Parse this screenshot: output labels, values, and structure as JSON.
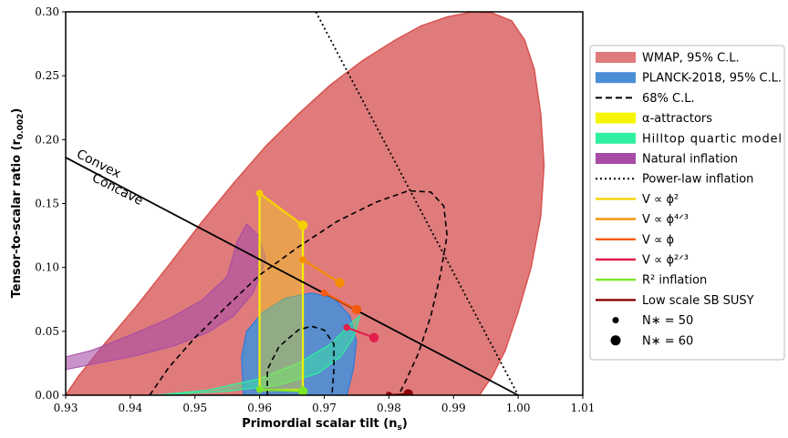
{
  "chart_data": {
    "type": "scatter",
    "title": "",
    "xlabel": "Primordial scalar tilt (n",
    "xlabel_sub": "s",
    "ylabel": "Tensor-to-scalar ratio (r",
    "ylabel_sub": "0.002",
    "xlim": [
      0.93,
      1.01
    ],
    "ylim": [
      0.0,
      0.3
    ],
    "xticks": [
      "0.93",
      "0.94",
      "0.95",
      "0.96",
      "0.97",
      "0.98",
      "0.99",
      "1.00",
      "1.01"
    ],
    "yticks": [
      "0.00",
      "0.05",
      "0.10",
      "0.15",
      "0.20",
      "0.25",
      "0.30"
    ],
    "annotations": [
      "Convex",
      "Concave"
    ],
    "colors": {
      "wmap": "#e07b7b",
      "wmap_edge": "#d9534f",
      "planck": "#4a8fd6",
      "planck_edge": "#2e7bd6",
      "alpha": "#f5e400",
      "hilltop": "#2ff0a0",
      "natural": "#a64ca6",
      "phi2": "#f5d000",
      "phi43": "#f58f00",
      "phi1": "#f55a10",
      "phi23": "#e0204a",
      "r2": "#7ce628",
      "susy": "#8b0000"
    },
    "regions": {
      "wmap_95": [
        [
          0.93,
          0.0
        ],
        [
          0.932,
          0.015
        ],
        [
          0.936,
          0.04
        ],
        [
          0.941,
          0.07
        ],
        [
          0.946,
          0.102
        ],
        [
          0.951,
          0.135
        ],
        [
          0.956,
          0.166
        ],
        [
          0.961,
          0.195
        ],
        [
          0.966,
          0.22
        ],
        [
          0.971,
          0.243
        ],
        [
          0.976,
          0.262
        ],
        [
          0.981,
          0.278
        ],
        [
          0.985,
          0.289
        ],
        [
          0.989,
          0.296
        ],
        [
          0.993,
          0.3
        ],
        [
          0.996,
          0.299
        ],
        [
          0.999,
          0.293
        ],
        [
          1.001,
          0.278
        ],
        [
          1.0025,
          0.255
        ],
        [
          1.0035,
          0.22
        ],
        [
          1.004,
          0.18
        ],
        [
          1.0035,
          0.14
        ],
        [
          1.002,
          0.1
        ],
        [
          1.0,
          0.065
        ],
        [
          0.998,
          0.035
        ],
        [
          0.996,
          0.015
        ],
        [
          0.994,
          0.0
        ]
      ],
      "planck_95": [
        [
          0.9575,
          0.0
        ],
        [
          0.9572,
          0.03
        ],
        [
          0.958,
          0.05
        ],
        [
          0.9605,
          0.065
        ],
        [
          0.964,
          0.076
        ],
        [
          0.968,
          0.08
        ],
        [
          0.9715,
          0.076
        ],
        [
          0.974,
          0.062
        ],
        [
          0.975,
          0.042
        ],
        [
          0.9745,
          0.02
        ],
        [
          0.9735,
          0.0
        ]
      ],
      "cl68_wmap": [
        [
          0.943,
          0.0
        ],
        [
          0.946,
          0.022
        ],
        [
          0.95,
          0.045
        ],
        [
          0.955,
          0.07
        ],
        [
          0.96,
          0.094
        ],
        [
          0.966,
          0.116
        ],
        [
          0.972,
          0.136
        ],
        [
          0.978,
          0.151
        ],
        [
          0.983,
          0.16
        ],
        [
          0.9865,
          0.159
        ],
        [
          0.9885,
          0.148
        ],
        [
          0.989,
          0.125
        ],
        [
          0.988,
          0.095
        ],
        [
          0.9865,
          0.062
        ],
        [
          0.9845,
          0.032
        ],
        [
          0.9825,
          0.01
        ],
        [
          0.9815,
          0.0
        ]
      ],
      "cl68_planck": [
        [
          0.9612,
          0.0
        ],
        [
          0.9612,
          0.02
        ],
        [
          0.963,
          0.038
        ],
        [
          0.966,
          0.051
        ],
        [
          0.968,
          0.054
        ],
        [
          0.97,
          0.051
        ],
        [
          0.9715,
          0.04
        ],
        [
          0.9715,
          0.02
        ],
        [
          0.9712,
          0.0
        ]
      ],
      "alpha_attractors": [
        [
          0.96,
          0.158
        ],
        [
          0.9667,
          0.133
        ],
        [
          0.9667,
          0.004
        ],
        [
          0.96,
          0.004
        ]
      ],
      "hilltop_quartic": [
        [
          0.943,
          0.0
        ],
        [
          0.955,
          0.003
        ],
        [
          0.963,
          0.008
        ],
        [
          0.969,
          0.017
        ],
        [
          0.9725,
          0.03
        ],
        [
          0.9745,
          0.045
        ],
        [
          0.9755,
          0.062
        ],
        [
          0.9745,
          0.058
        ],
        [
          0.971,
          0.04
        ],
        [
          0.966,
          0.025
        ],
        [
          0.96,
          0.013
        ],
        [
          0.952,
          0.004
        ],
        [
          0.944,
          0.0
        ]
      ],
      "natural_inflation": [
        [
          0.93,
          0.02
        ],
        [
          0.935,
          0.025
        ],
        [
          0.941,
          0.031
        ],
        [
          0.947,
          0.039
        ],
        [
          0.952,
          0.049
        ],
        [
          0.956,
          0.062
        ],
        [
          0.959,
          0.08
        ],
        [
          0.961,
          0.106
        ],
        [
          0.9598,
          0.125
        ],
        [
          0.958,
          0.134
        ],
        [
          0.9565,
          0.12
        ],
        [
          0.955,
          0.093
        ],
        [
          0.951,
          0.074
        ],
        [
          0.946,
          0.06
        ],
        [
          0.94,
          0.047
        ],
        [
          0.934,
          0.035
        ],
        [
          0.93,
          0.03
        ]
      ]
    },
    "series": [
      {
        "name": "V ∝ ϕ²",
        "key": "phi2",
        "x": [
          0.96,
          0.9667
        ],
        "y": [
          0.158,
          0.133
        ]
      },
      {
        "name": "V ∝ ϕ⁴ᐟ³",
        "key": "phi43",
        "x": [
          0.9667,
          0.9724
        ],
        "y": [
          0.106,
          0.088
        ]
      },
      {
        "name": "V ∝ ϕ",
        "key": "phi1",
        "x": [
          0.97,
          0.975
        ],
        "y": [
          0.08,
          0.067
        ]
      },
      {
        "name": "V ∝ ϕ²ᐟ³",
        "key": "phi23",
        "x": [
          0.9735,
          0.9777
        ],
        "y": [
          0.053,
          0.045
        ]
      },
      {
        "name": "R² inflation",
        "key": "r2",
        "x": [
          0.96,
          0.9667
        ],
        "y": [
          0.0045,
          0.003
        ]
      },
      {
        "name": "Low scale SB SUSY",
        "key": "susy",
        "x": [
          0.98,
          0.983
        ],
        "y": [
          0.0,
          0.001
        ]
      }
    ],
    "lines": {
      "convex_concave": {
        "x": [
          0.93,
          1.0
        ],
        "y": [
          0.186,
          0.0
        ]
      },
      "power_law": {
        "x": [
          0.9687,
          1.0
        ],
        "y": [
          0.3,
          0.0
        ]
      }
    },
    "legend": {
      "placement": "right",
      "entries": [
        {
          "label": "WMAP, 95% C.L.",
          "kind": "patch",
          "color": "#e07b7b"
        },
        {
          "label": "PLANCK-2018, 95% C.L.",
          "kind": "patch",
          "color": "#4a8fd6"
        },
        {
          "label": "68% C.L.",
          "kind": "dashed",
          "color": "#000000"
        },
        {
          "label": "α-attractors",
          "kind": "patch",
          "color": "#f5f500"
        },
        {
          "label": "Hilltop quartic model",
          "kind": "patch",
          "color": "#2ff0a0"
        },
        {
          "label": "Natural inflation",
          "kind": "patch",
          "color": "#a64ca6"
        },
        {
          "label": "Power-law inflation",
          "kind": "dotted",
          "color": "#000000"
        },
        {
          "label": "V ∝ ϕ²",
          "kind": "line",
          "color": "#f5d000"
        },
        {
          "label": "V ∝ ϕ⁴ᐟ³",
          "kind": "line",
          "color": "#f58f00"
        },
        {
          "label": "V ∝ ϕ",
          "kind": "line",
          "color": "#f55a10"
        },
        {
          "label": "V ∝ ϕ²ᐟ³",
          "kind": "line",
          "color": "#e0204a"
        },
        {
          "label": "R² inflation",
          "kind": "line",
          "color": "#7ce628"
        },
        {
          "label": "Low scale SB SUSY",
          "kind": "line",
          "color": "#8b0000"
        },
        {
          "label": "N∗ = 50",
          "kind": "marker-small",
          "color": "#000000"
        },
        {
          "label": "N∗ = 60",
          "kind": "marker-large",
          "color": "#000000"
        }
      ]
    }
  }
}
